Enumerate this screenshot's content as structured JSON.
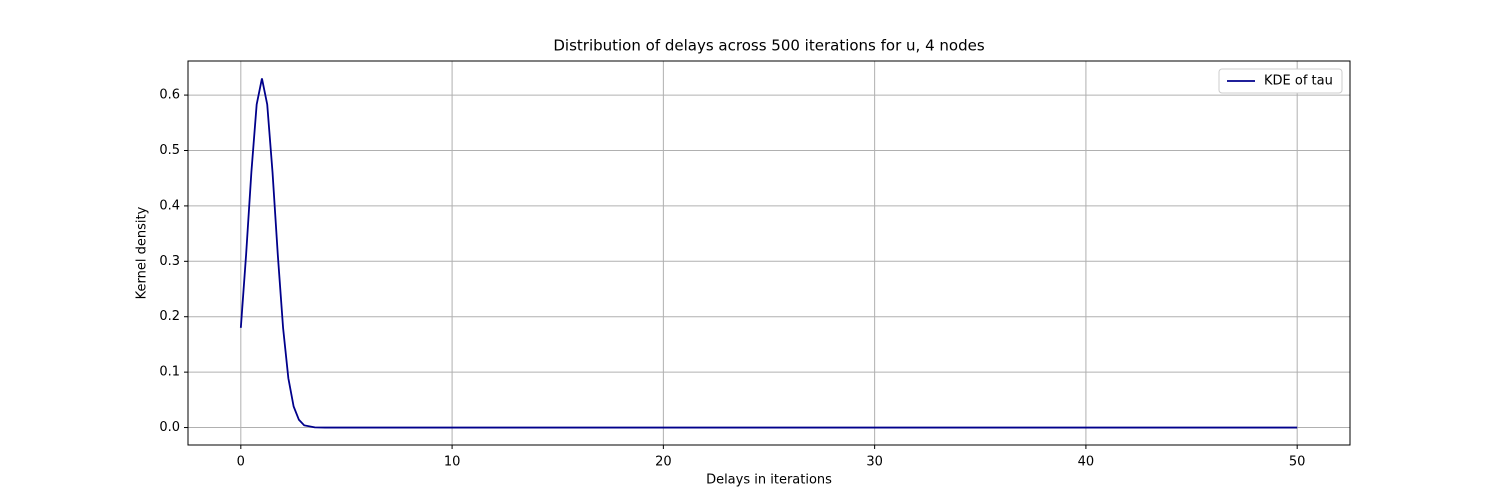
{
  "chart_data": {
    "type": "line",
    "title": "Distribution of delays across 500 iterations for u, 4 nodes",
    "xlabel": "Delays in iterations",
    "ylabel": "Kernel density",
    "x": [
      0,
      0.25,
      0.5,
      0.75,
      1,
      1.25,
      1.5,
      1.75,
      2,
      2.25,
      2.5,
      2.75,
      3,
      3.5,
      4,
      5,
      10,
      15,
      20,
      25,
      30,
      35,
      40,
      45,
      50
    ],
    "series": [
      {
        "name": "KDE of tau",
        "color": "#00008b",
        "values": [
          0.18,
          0.312,
          0.461,
          0.583,
          0.63,
          0.583,
          0.461,
          0.312,
          0.18,
          0.089,
          0.038,
          0.014,
          0.004,
          0.0003,
          0,
          0,
          0,
          0,
          0,
          0,
          0,
          0,
          0,
          0,
          0
        ]
      }
    ],
    "xlim": [
      -2.5,
      52.5
    ],
    "ylim": [
      -0.0315,
      0.6615
    ],
    "xticks": [
      0,
      10,
      20,
      30,
      40,
      50
    ],
    "yticks": [
      {
        "value": 0,
        "label": "0.0"
      },
      0.1,
      0.2,
      0.3,
      0.4,
      0.5,
      0.6
    ],
    "grid": true,
    "legend": "upper right"
  }
}
